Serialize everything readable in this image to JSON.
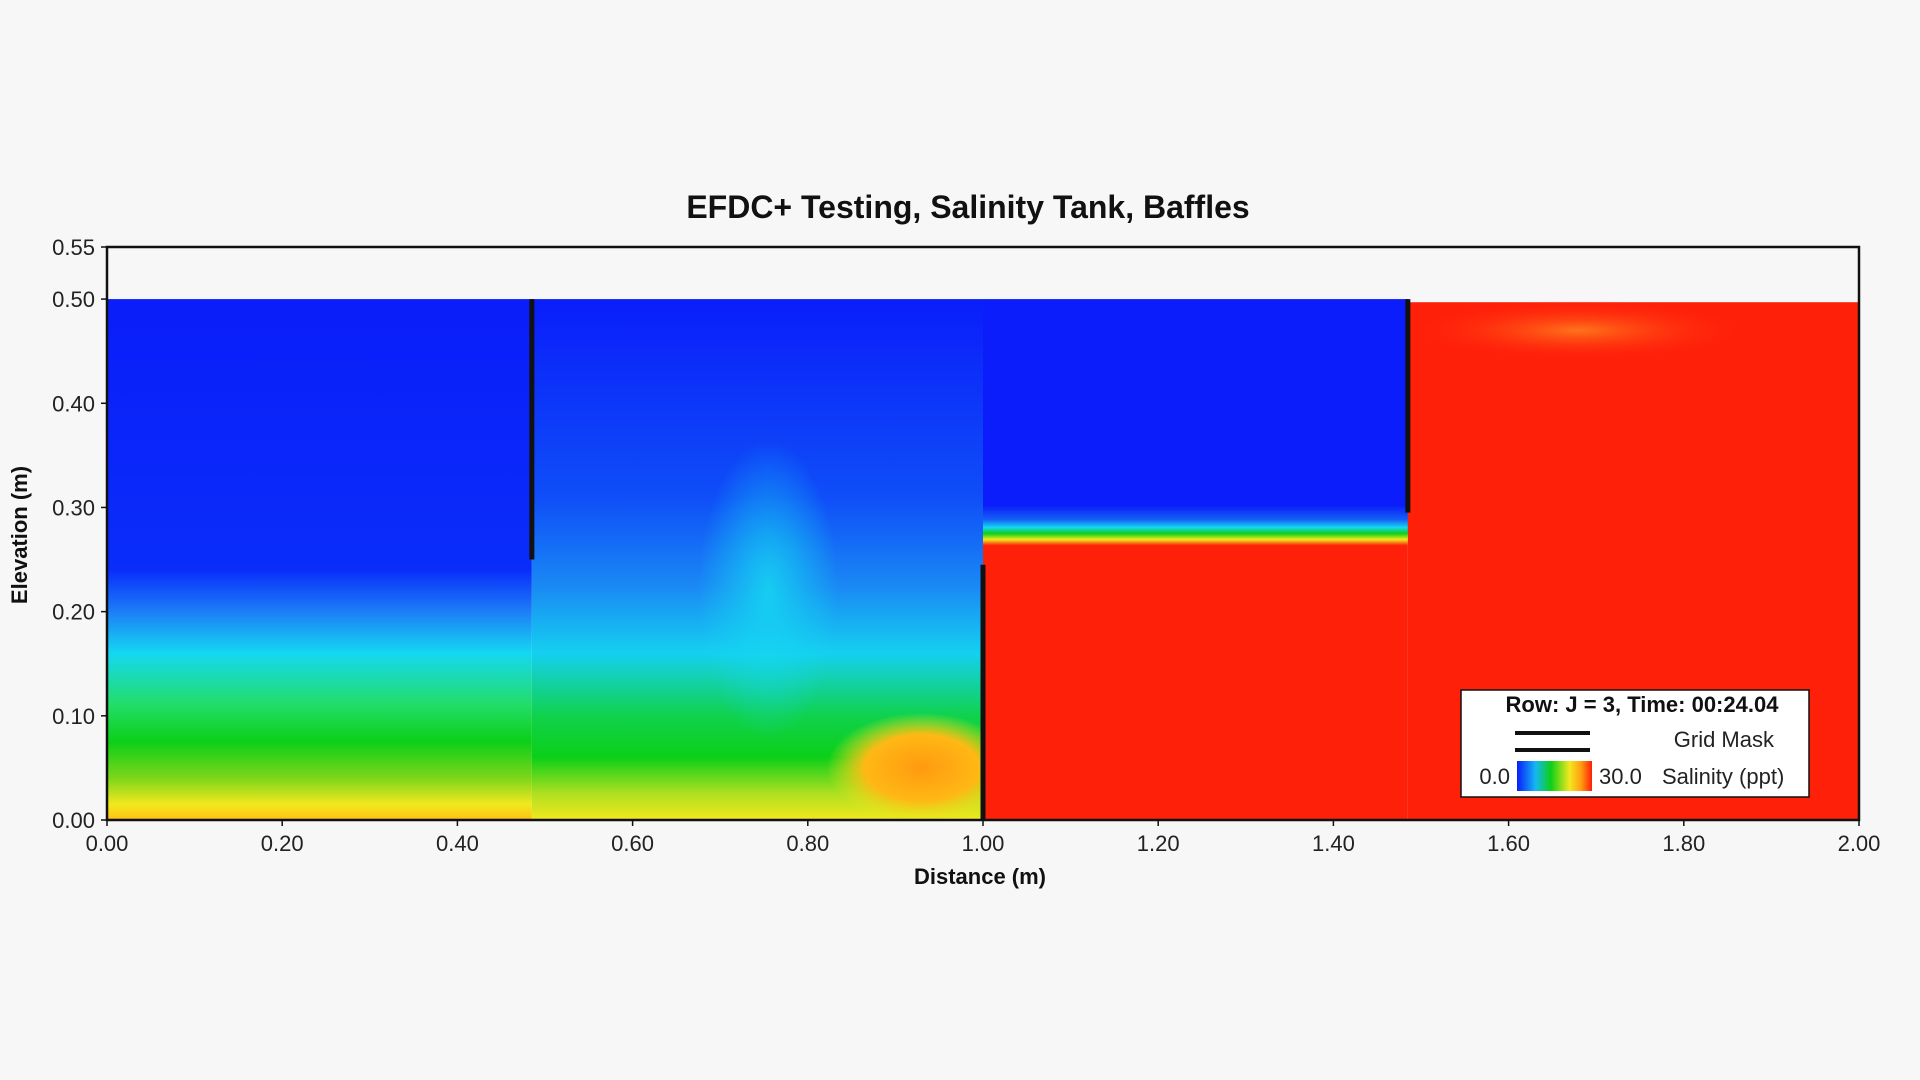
{
  "chart_data": {
    "type": "heatmap",
    "title": "EFDC+ Testing, Salinity Tank, Baffles",
    "xlabel": "Distance (m)",
    "ylabel": "Elevation (m)",
    "xlim": [
      0.0,
      2.0
    ],
    "ylim": [
      0.0,
      0.55
    ],
    "x_ticks": [
      "0.00",
      "0.20",
      "0.40",
      "0.60",
      "0.80",
      "1.00",
      "1.20",
      "1.40",
      "1.60",
      "1.80",
      "2.00"
    ],
    "y_ticks": [
      "0.00",
      "0.10",
      "0.20",
      "0.30",
      "0.40",
      "0.50",
      "0.55"
    ],
    "water_surface": 0.5,
    "baffles": [
      {
        "x": 0.485,
        "y_from": 0.25,
        "y_to": 0.5
      },
      {
        "x": 1.0,
        "y_from": 0.0,
        "y_to": 0.245
      },
      {
        "x": 1.485,
        "y_from": 0.295,
        "y_to": 0.5
      }
    ],
    "salinity_regions": [
      {
        "zone": "x 0.00-1.00, bottom layer",
        "salinity_ppt": 24
      },
      {
        "zone": "x 0.00-1.00, mid layer",
        "salinity_ppt": 16
      },
      {
        "zone": "x 0.00-1.00, upper layer",
        "salinity_ppt": 0
      },
      {
        "zone": "x 1.00-1.49, below 0.27 m",
        "salinity_ppt": 30
      },
      {
        "zone": "x 1.00-1.49, above 0.29 m",
        "salinity_ppt": 0
      },
      {
        "zone": "x 1.49-2.00, full depth",
        "salinity_ppt": 30
      }
    ],
    "legend": {
      "placement": "bottom-right",
      "title": "Row: J = 3, Time: 00:24.04",
      "mask_label": "Grid Mask",
      "scale_min": "0.0",
      "scale_max": "30.0",
      "scale_label": "Salinity (ppt)"
    },
    "colors": {
      "fresh": "#0a1dfa",
      "cyan": "#15d8f2",
      "green": "#0ccf18",
      "yellow": "#f2e81e",
      "orange": "#ffa010",
      "saline": "#ff200a",
      "mask": "#111111"
    },
    "grid": false
  }
}
